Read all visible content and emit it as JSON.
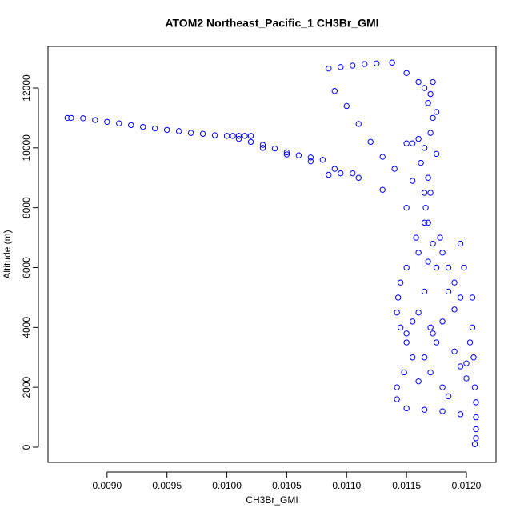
{
  "chart_data": {
    "type": "scatter",
    "title": "ATOM2 Northeast_Pacific_1 CH3Br_GMI",
    "x_label": "CH3Br_GMI",
    "y_label": "Altitude (m)",
    "color": "#0000ff",
    "xlim": [
      0.008507,
      0.012247
    ],
    "ylim": [
      -508,
      13390
    ],
    "xticks": [
      {
        "value": 0.009,
        "label": "0.0090"
      },
      {
        "value": 0.0095,
        "label": "0.0095"
      },
      {
        "value": 0.01,
        "label": "0.0100"
      },
      0.0105,
      {
        "value": 0.011,
        "label": "0.0110"
      },
      0.0115,
      {
        "value": 0.012,
        "label": "0.0120"
      }
    ],
    "yticks": [
      0,
      2000,
      4000,
      6000,
      8000,
      10000,
      12000
    ],
    "x": [
      0.00867,
      0.0087,
      0.0088,
      0.0089,
      0.009,
      0.0091,
      0.0092,
      0.0093,
      0.0094,
      0.0095,
      0.0096,
      0.0097,
      0.0098,
      0.0099,
      0.01,
      0.01005,
      0.0101,
      0.01015,
      0.0102,
      0.0101,
      0.0102,
      0.0103,
      0.0104,
      0.0105,
      0.0106,
      0.0107,
      0.0108,
      0.0103,
      0.0105,
      0.0107,
      0.0109,
      0.0111,
      0.0113,
      0.0115,
      0.01165,
      0.01085,
      0.01095,
      0.01105,
      0.01085,
      0.01095,
      0.01105,
      0.01115,
      0.01125,
      0.01138,
      0.0115,
      0.0116,
      0.0117,
      0.0109,
      0.011,
      0.0111,
      0.0112,
      0.0113,
      0.0114,
      0.01155,
      0.01165,
      0.01165,
      0.01168,
      0.01172,
      0.0117,
      0.01165,
      0.01162,
      0.01168,
      0.0117,
      0.01166,
      0.01168,
      0.01172,
      0.01175,
      0.0116,
      0.0115,
      0.01155,
      0.01175,
      0.01178,
      0.01172,
      0.0118,
      0.01185,
      0.0119,
      0.01195,
      0.0116,
      0.0115,
      0.01145,
      0.01143,
      0.01142,
      0.01145,
      0.0115,
      0.01155,
      0.01148,
      0.01142,
      0.01142,
      0.0115,
      0.01165,
      0.0118,
      0.01195,
      0.01165,
      0.0116,
      0.0117,
      0.01175,
      0.01165,
      0.0117,
      0.0118,
      0.01185,
      0.01175,
      0.01185,
      0.0119,
      0.0118,
      0.01172,
      0.0119,
      0.01195,
      0.012,
      0.01158,
      0.01168,
      0.01155,
      0.0115,
      0.0116,
      0.01195,
      0.01198,
      0.01205,
      0.01205,
      0.01206,
      0.01207,
      0.01208,
      0.01208,
      0.01208,
      0.01208,
      0.01207,
      0.01203,
      0.012
    ],
    "y": [
      11000,
      11000,
      10990,
      10930,
      10870,
      10820,
      10760,
      10700,
      10650,
      10600,
      10560,
      10500,
      10470,
      10420,
      10400,
      10400,
      10400,
      10400,
      10400,
      10300,
      10200,
      10100,
      9980,
      9850,
      9750,
      9680,
      9600,
      10000,
      9780,
      9550,
      9300,
      9000,
      8600,
      8000,
      7500,
      9100,
      9150,
      9150,
      12650,
      12700,
      12750,
      12800,
      12820,
      12850,
      12500,
      12200,
      11800,
      11900,
      11400,
      10800,
      10200,
      9700,
      9300,
      8900,
      8500,
      12000,
      11500,
      11000,
      10500,
      10000,
      9500,
      9000,
      8500,
      8000,
      7500,
      12200,
      11200,
      10300,
      10150,
      10150,
      9800,
      7000,
      6800,
      6500,
      6000,
      5500,
      5000,
      6500,
      6000,
      5500,
      5000,
      4500,
      4000,
      3500,
      3000,
      2500,
      2000,
      1600,
      1300,
      1250,
      1200,
      1100,
      5200,
      4500,
      4000,
      3500,
      3000,
      2500,
      2000,
      1700,
      6000,
      5200,
      4600,
      4200,
      3800,
      3200,
      2700,
      2300,
      7000,
      6200,
      4200,
      3800,
      2200,
      6800,
      6000,
      5000,
      4000,
      3000,
      2000,
      1500,
      1000,
      600,
      300,
      100,
      3500,
      2800
    ]
  }
}
